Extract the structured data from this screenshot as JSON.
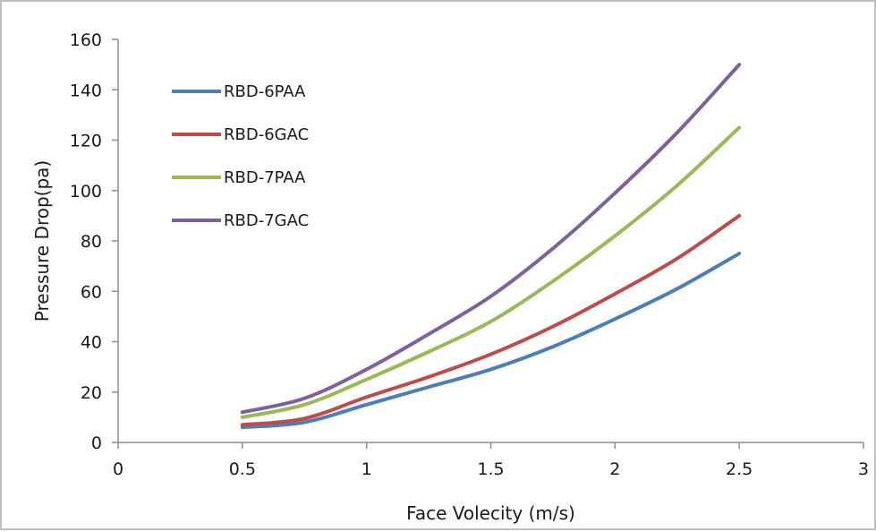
{
  "chart_data": {
    "type": "line",
    "title": "",
    "xlabel": "Face Volecity (m/s)",
    "ylabel": "Pressure Drop(pa)",
    "xlim": [
      0,
      3
    ],
    "ylim": [
      0,
      160
    ],
    "xticks": [
      0,
      0.5,
      1,
      1.5,
      2,
      2.5,
      3
    ],
    "xtick_labels": [
      "0",
      "0.5",
      "1",
      "1.5",
      "2",
      "2.5",
      "3"
    ],
    "yticks": [
      0,
      20,
      40,
      60,
      80,
      100,
      120,
      140,
      160
    ],
    "ytick_labels": [
      "0",
      "20",
      "40",
      "60",
      "80",
      "100",
      "120",
      "140",
      "160"
    ],
    "grid": false,
    "legend_position": "top-left",
    "series": [
      {
        "name": "RBD-6PAA",
        "color": "#4a7ebb",
        "x": [
          0.5,
          0.75,
          1,
          1.25,
          1.5,
          1.75,
          2,
          2.25,
          2.5
        ],
        "y": [
          6,
          8,
          15,
          22,
          29,
          38,
          49,
          61,
          75
        ]
      },
      {
        "name": "RBD-6GAC",
        "color": "#be4b48",
        "x": [
          0.5,
          0.75,
          1,
          1.25,
          1.5,
          1.75,
          2,
          2.25,
          2.5
        ],
        "y": [
          7,
          9.5,
          18,
          26,
          35,
          46,
          59,
          73,
          90
        ]
      },
      {
        "name": "RBD-7PAA",
        "color": "#98b954",
        "x": [
          0.5,
          0.75,
          1,
          1.25,
          1.5,
          1.75,
          2,
          2.25,
          2.5
        ],
        "y": [
          10,
          15,
          25,
          36,
          48,
          64,
          82,
          102,
          125
        ]
      },
      {
        "name": "RBD-7GAC",
        "color": "#7d60a0",
        "x": [
          0.5,
          0.75,
          1,
          1.25,
          1.5,
          1.75,
          2,
          2.25,
          2.5
        ],
        "y": [
          12,
          17.5,
          29,
          43,
          58,
          77,
          99,
          123,
          150
        ]
      }
    ]
  }
}
